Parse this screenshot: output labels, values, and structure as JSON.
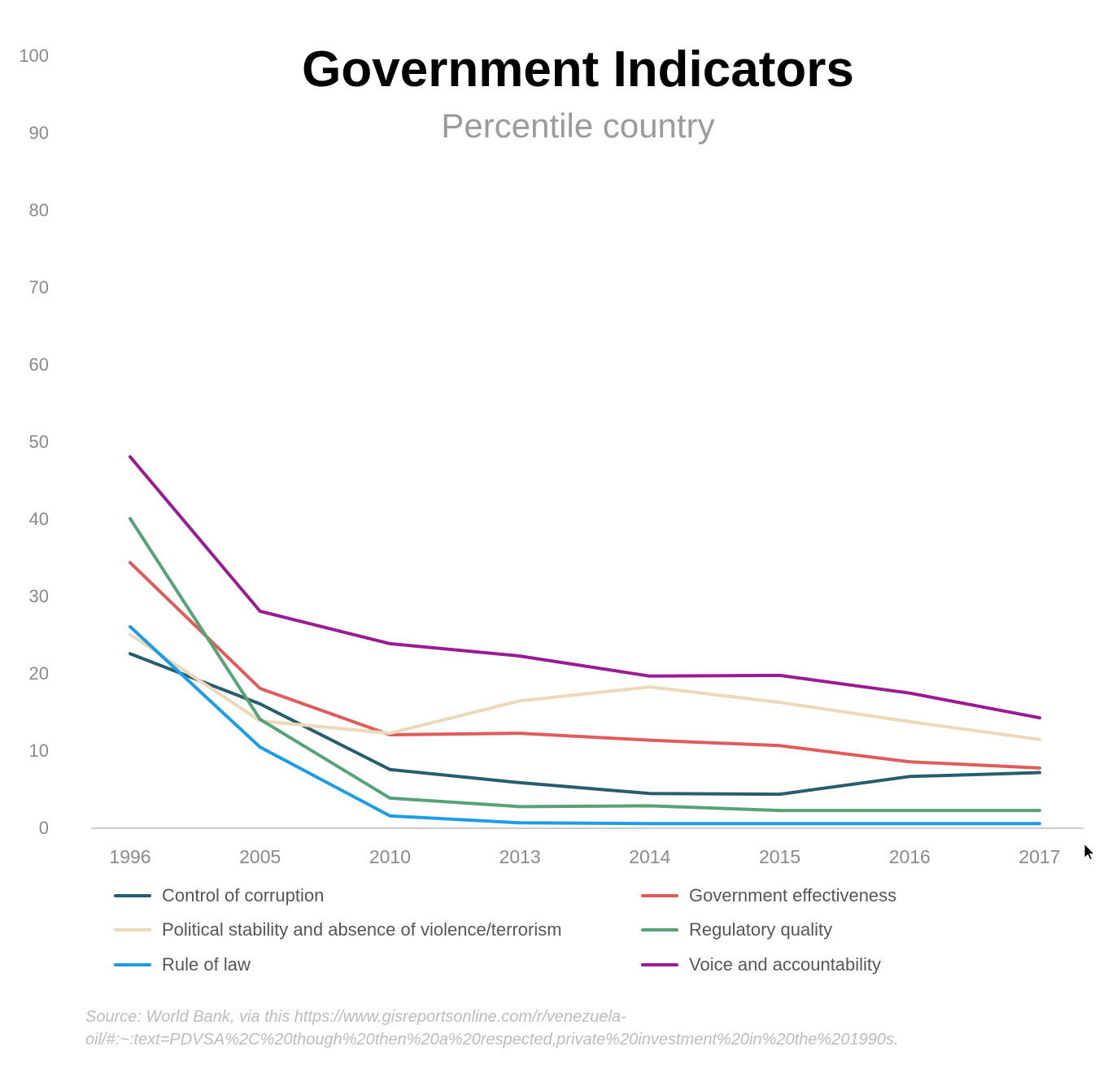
{
  "chart_data": {
    "type": "line",
    "title": "Government Indicators",
    "subtitle": "Percentile country",
    "categories": [
      "1996",
      "2005",
      "2010",
      "2013",
      "2014",
      "2015",
      "2016",
      "2017"
    ],
    "yticks": [
      0,
      10,
      20,
      30,
      40,
      50,
      60,
      70,
      80,
      90,
      100
    ],
    "ylim": [
      0,
      100
    ],
    "grid": false,
    "legend_position": "bottom-two-columns",
    "axis_color": "#cccccc",
    "tick_label_color": "#8a8a8a",
    "series": [
      {
        "name": "Control of corruption",
        "color": "#275e6e",
        "values": [
          22.5,
          16,
          7.5,
          5.8,
          4.4,
          4.3,
          6.6,
          7.1
        ]
      },
      {
        "name": "Government effectiveness",
        "color": "#e05c5c",
        "values": [
          34.3,
          18,
          12,
          12.2,
          11.3,
          10.6,
          8.5,
          7.7
        ]
      },
      {
        "name": "Political stability and absence of violence/terrorism",
        "color": "#ecd9b8",
        "values": [
          25,
          13.8,
          12.2,
          16.4,
          18.2,
          16.2,
          13.7,
          11.4
        ]
      },
      {
        "name": "Regulatory quality",
        "color": "#57a377",
        "values": [
          40,
          14,
          3.8,
          2.7,
          2.8,
          2.2,
          2.2,
          2.2
        ]
      },
      {
        "name": "Rule of law",
        "color": "#1f9ce6",
        "values": [
          26,
          10.4,
          1.5,
          0.6,
          0.5,
          0.5,
          0.5,
          0.5
        ]
      },
      {
        "name": "Voice and accountability",
        "color": "#9a1b93",
        "values": [
          48,
          28,
          23.8,
          22.2,
          19.6,
          19.7,
          17.4,
          14.2
        ]
      }
    ]
  },
  "source": {
    "line1": "Source: World Bank, via this https://www.gisreportsonline.com/r/venezuela-",
    "line2": "oil/#:~:text=PDVSA%2C%20though%20then%20a%20respected,private%20investment%20in%20the%201990s."
  },
  "icons": {
    "cursor": "mouse-pointer-arrow"
  }
}
